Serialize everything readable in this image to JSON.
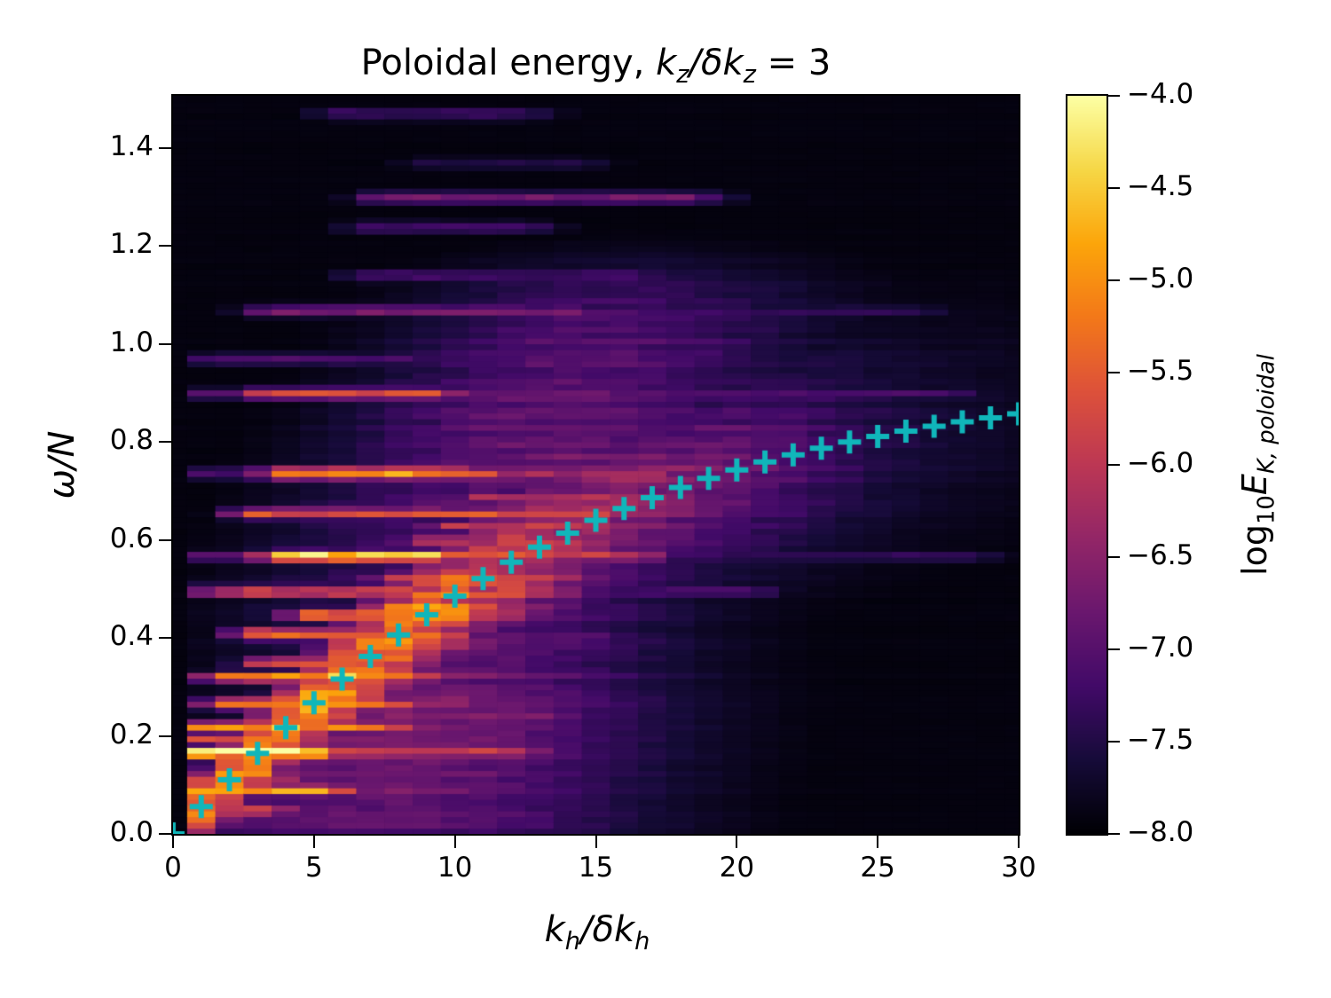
{
  "figure": {
    "background": "#ffffff"
  },
  "title": {
    "text": "Poloidal energy, kz/δkz = 3",
    "prefix": "Poloidal energy, ",
    "m1": "k",
    "m1_sub": "z",
    "m2": "/δk",
    "m2_sub": "z",
    "m3": " = 3"
  },
  "axes": {
    "xlabel": {
      "text": "kh/δkh",
      "m1": "k",
      "m1_sub": "h",
      "m2": "/δk",
      "m2_sub": "h"
    },
    "ylabel": {
      "text": "ω/N"
    },
    "xlim": [
      0,
      30
    ],
    "ylim": [
      0,
      1.507
    ],
    "xticks": {
      "values": [
        0,
        5,
        10,
        15,
        20,
        25,
        30
      ],
      "labels": [
        "0",
        "5",
        "10",
        "15",
        "20",
        "25",
        "30"
      ]
    },
    "yticks": {
      "values": [
        0,
        0.2,
        0.4,
        0.6,
        0.8,
        1.0,
        1.2,
        1.4
      ],
      "labels": [
        "0.0",
        "0.2",
        "0.4",
        "0.6",
        "0.8",
        "1.0",
        "1.2",
        "1.4"
      ]
    }
  },
  "colorbar": {
    "label": {
      "text": "log10 EK, poloidal",
      "log": "log",
      "log_sub": "10",
      "E": "E",
      "E_sub": "K, poloidal"
    },
    "clim": [
      -8,
      -4
    ],
    "ticks": {
      "values": [
        -4.0,
        -4.5,
        -5.0,
        -5.5,
        -6.0,
        -6.5,
        -7.0,
        -7.5,
        -8.0
      ],
      "labels": [
        "−4.0",
        "−4.5",
        "−5.0",
        "−5.5",
        "−6.0",
        "−6.5",
        "−7.0",
        "−7.5",
        "−8.0"
      ]
    },
    "colormap": {
      "name": "inferno",
      "anchors": [
        "#000004",
        "#160b39",
        "#420a68",
        "#6a176e",
        "#932667",
        "#bc3754",
        "#dd513a",
        "#f37819",
        "#fca50a",
        "#f6d746",
        "#fcffa4"
      ]
    }
  },
  "chart_data": {
    "type": "heatmap",
    "title": "Poloidal energy, kz/δkz = 3",
    "xlabel": "kh/δkh",
    "ylabel": "ω/N",
    "colorbar_label": "log10 E_K,poloidal",
    "xlim": [
      0,
      30
    ],
    "ylim": [
      0,
      1.507
    ],
    "value_range": [
      -8,
      -4
    ],
    "dispersion_markers": {
      "marker": "+",
      "color": "#10b6ba",
      "relation": "omega/N = kh/sqrt(kh^2 + 18^2)",
      "points": [
        [
          0,
          0.0
        ],
        [
          1,
          0.0555
        ],
        [
          2,
          0.1104
        ],
        [
          3,
          0.1644
        ],
        [
          4,
          0.2169
        ],
        [
          5,
          0.2676
        ],
        [
          6,
          0.3162
        ],
        [
          7,
          0.3624
        ],
        [
          8,
          0.4061
        ],
        [
          9,
          0.4472
        ],
        [
          10,
          0.4856
        ],
        [
          11,
          0.5214
        ],
        [
          12,
          0.5547
        ],
        [
          13,
          0.5855
        ],
        [
          14,
          0.6139
        ],
        [
          15,
          0.6402
        ],
        [
          16,
          0.6644
        ],
        [
          17,
          0.6866
        ],
        [
          18,
          0.7071
        ],
        [
          19,
          0.7259
        ],
        [
          20,
          0.7433
        ],
        [
          21,
          0.7593
        ],
        [
          22,
          0.774
        ],
        [
          23,
          0.7875
        ],
        [
          24,
          0.8
        ],
        [
          25,
          0.8115
        ],
        [
          26,
          0.8222
        ],
        [
          27,
          0.8321
        ],
        [
          28,
          0.8412
        ],
        [
          29,
          0.8497
        ],
        [
          30,
          0.8575
        ]
      ]
    },
    "heatmap": {
      "kz": 18,
      "columns": 30,
      "rows": 128,
      "floor_t": 0.02,
      "ridge_t": [
        0.7,
        0.71,
        0.74,
        0.72,
        0.73,
        0.75,
        0.74,
        0.72,
        0.68,
        0.64,
        0.6,
        0.56,
        0.51,
        0.47,
        0.43,
        0.39,
        0.36,
        0.33,
        0.3,
        0.28,
        0.25,
        0.22,
        0.19,
        0.16,
        0.13,
        0.11,
        0.09,
        0.08,
        0.07,
        0.06
      ],
      "ridge_sigma": [
        0.05,
        0.005
      ],
      "fog_low": {
        "amp": 0.32,
        "kc": 8,
        "ks": 6.5
      },
      "fog_up": {
        "amp": 0.27,
        "kc": 13,
        "ks": 6.5,
        "woff": 0.22,
        "wsig": 0.3,
        "wmax": 1.18
      },
      "streaks": [
        [
          0.05,
          0.5,
          3,
          0.62
        ],
        [
          0.09,
          0.5,
          5,
          0.66
        ],
        [
          0.111,
          0.5,
          3,
          0.6
        ],
        [
          0.167,
          0.5,
          4.5,
          0.97
        ],
        [
          0.167,
          4.5,
          12,
          0.52
        ],
        [
          0.195,
          0.5,
          3,
          0.55
        ],
        [
          0.22,
          1,
          7,
          0.66
        ],
        [
          0.24,
          8,
          13,
          0.35
        ],
        [
          0.267,
          2,
          7,
          0.64
        ],
        [
          0.32,
          2,
          8,
          0.68
        ],
        [
          0.35,
          3.5,
          8,
          0.66
        ],
        [
          0.41,
          3,
          9,
          0.8
        ],
        [
          0.41,
          9,
          15,
          0.3
        ],
        [
          0.447,
          5,
          10,
          0.66
        ],
        [
          0.497,
          0.8,
          2.5,
          0.42
        ],
        [
          0.497,
          2.5,
          13,
          0.62
        ],
        [
          0.497,
          13,
          20,
          0.25
        ],
        [
          0.52,
          8,
          13,
          0.55
        ],
        [
          0.567,
          1.2,
          4,
          0.25
        ],
        [
          0.567,
          4,
          9,
          0.93
        ],
        [
          0.567,
          9,
          16,
          0.55
        ],
        [
          0.567,
          16,
          28,
          0.17
        ],
        [
          0.6,
          9,
          14,
          0.55
        ],
        [
          0.63,
          10,
          15,
          0.5
        ],
        [
          0.655,
          3,
          15,
          0.55
        ],
        [
          0.69,
          11,
          17,
          0.5
        ],
        [
          0.737,
          1,
          4,
          0.22
        ],
        [
          0.737,
          4,
          10,
          0.78
        ],
        [
          0.737,
          10,
          17,
          0.45
        ],
        [
          0.737,
          17,
          24,
          0.15
        ],
        [
          0.775,
          13,
          20,
          0.35
        ],
        [
          0.8,
          15,
          21,
          0.28
        ],
        [
          0.9,
          1,
          3.5,
          0.22
        ],
        [
          0.9,
          3.5,
          9,
          0.52
        ],
        [
          0.9,
          9,
          27,
          0.2
        ],
        [
          0.97,
          1.5,
          8,
          0.22
        ],
        [
          1.07,
          3.5,
          14,
          0.33
        ],
        [
          1.07,
          14,
          26,
          0.16
        ],
        [
          1.14,
          7,
          16,
          0.22
        ],
        [
          1.24,
          7,
          12,
          0.22
        ],
        [
          1.3,
          7.5,
          18,
          0.3
        ],
        [
          1.37,
          9,
          14,
          0.13
        ],
        [
          1.47,
          6,
          12,
          0.2
        ]
      ]
    }
  }
}
